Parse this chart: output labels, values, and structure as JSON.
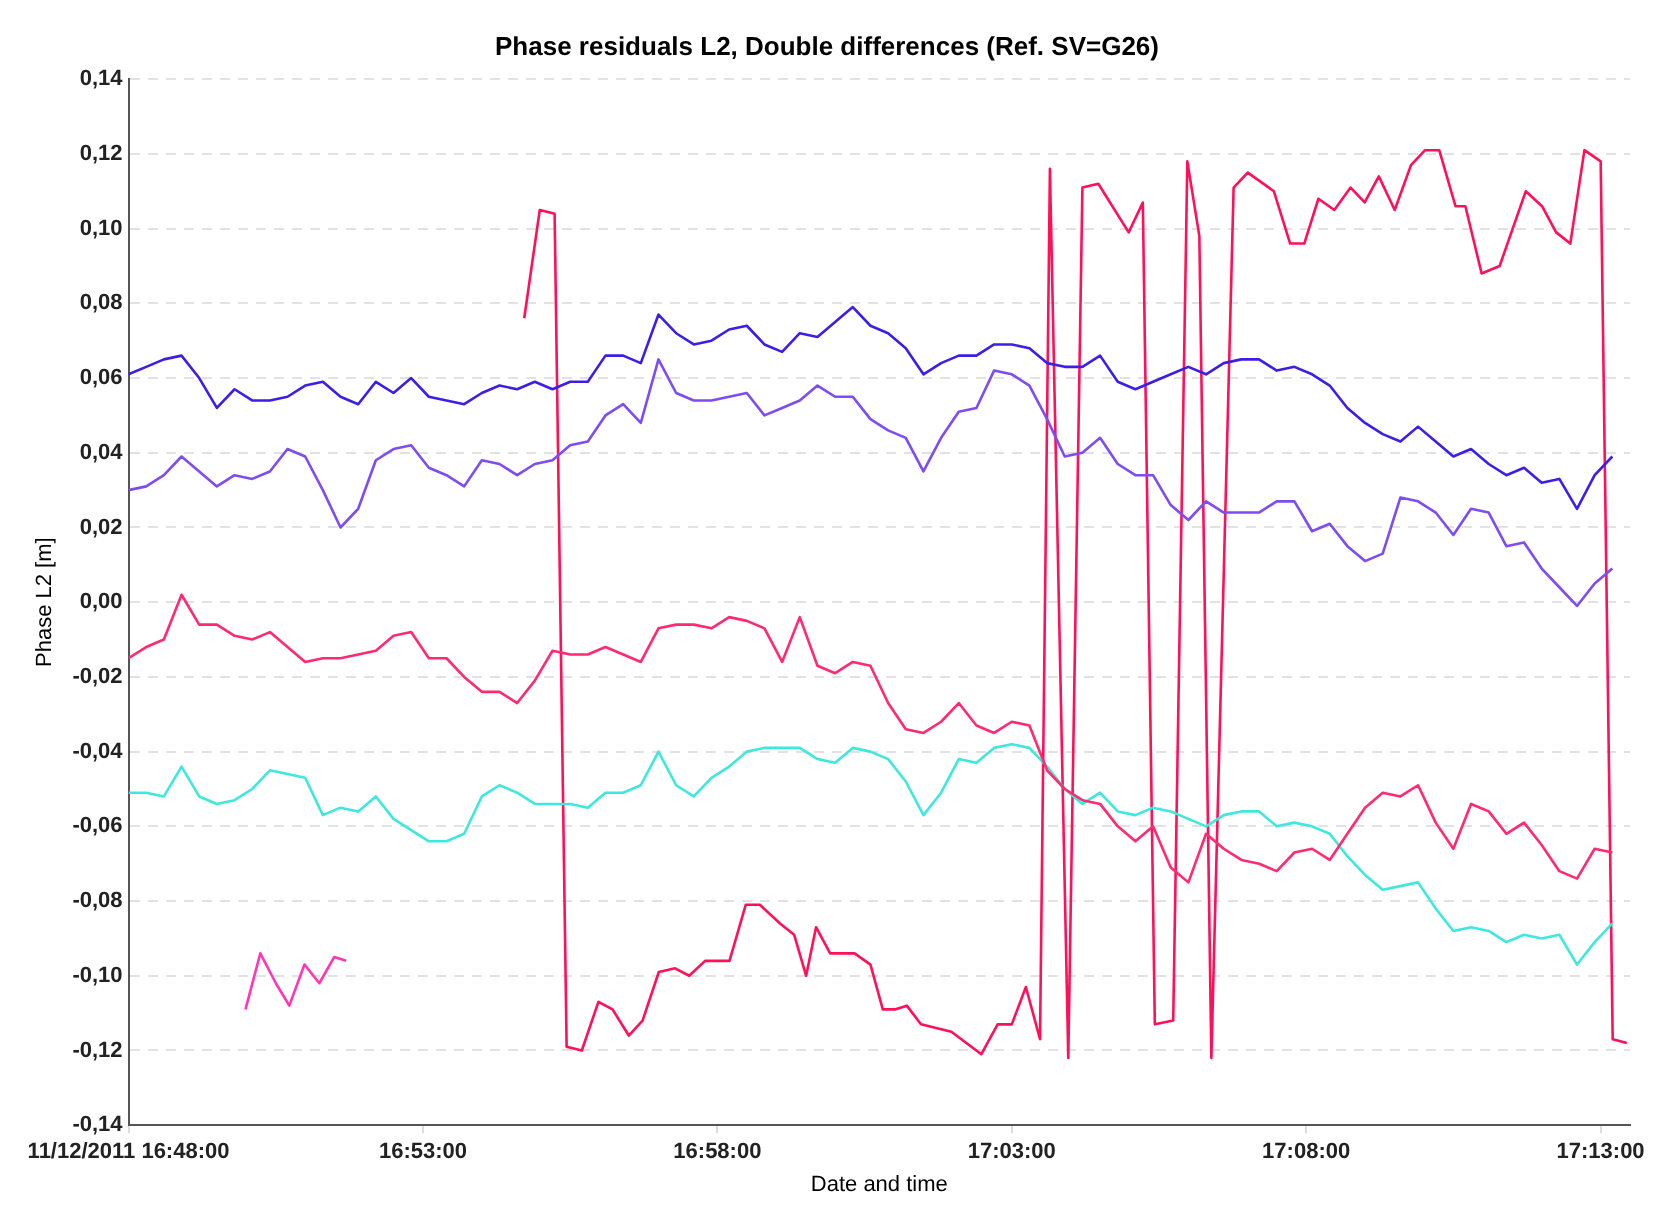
{
  "chart_data": {
    "type": "line",
    "title": "Phase residuals L2, Double differences (Ref. SV=G26)",
    "xlabel": "Date and time",
    "ylabel": "Phase L2 [m]",
    "xlim": [
      16.8,
      17.225
    ],
    "xticks": [
      {
        "value": 16.8,
        "label": "11/12/2011 16:48:00"
      },
      {
        "value": 16.88333,
        "label": "16:53:00"
      },
      {
        "value": 16.96667,
        "label": "16:58:00"
      },
      {
        "value": 17.05,
        "label": "17:03:00"
      },
      {
        "value": 17.13333,
        "label": "17:08:00"
      },
      {
        "value": 17.21667,
        "label": "17:13:00"
      }
    ],
    "ylim": [
      -0.14,
      0.14
    ],
    "yticks": [
      {
        "value": -0.14,
        "label": "-0,14"
      },
      {
        "value": -0.12,
        "label": "-0,12"
      },
      {
        "value": -0.1,
        "label": "-0,10"
      },
      {
        "value": -0.08,
        "label": "-0,08"
      },
      {
        "value": -0.06,
        "label": "-0,06"
      },
      {
        "value": -0.04,
        "label": "-0,04"
      },
      {
        "value": -0.02,
        "label": "-0,02"
      },
      {
        "value": 0,
        "label": "0,00"
      },
      {
        "value": 0.02,
        "label": "0,02"
      },
      {
        "value": 0.04,
        "label": "0,04"
      },
      {
        "value": 0.06,
        "label": "0,06"
      },
      {
        "value": 0.08,
        "label": "0,08"
      },
      {
        "value": 0.1,
        "label": "0,10"
      },
      {
        "value": 0.12,
        "label": "0,12"
      },
      {
        "value": 0.14,
        "label": "0,14"
      }
    ],
    "grid": "y",
    "line_style": "solid",
    "x": [
      16.8,
      16.805,
      16.81,
      16.815,
      16.82,
      16.825,
      16.83,
      16.835,
      16.84,
      16.845,
      16.85,
      16.855,
      16.86,
      16.865,
      16.87,
      16.875,
      16.88,
      16.885,
      16.89,
      16.895,
      16.9,
      16.905,
      16.91,
      16.915,
      16.92,
      16.925,
      16.93,
      16.935,
      16.94,
      16.945,
      16.95,
      16.955,
      16.96,
      16.965,
      16.97,
      16.975,
      16.98,
      16.985,
      16.99,
      16.995,
      17.0,
      17.005,
      17.01,
      17.015,
      17.02,
      17.025,
      17.03,
      17.035,
      17.04,
      17.045,
      17.05,
      17.055,
      17.06,
      17.065,
      17.07,
      17.075,
      17.08,
      17.085,
      17.09,
      17.095,
      17.1,
      17.105,
      17.11,
      17.115,
      17.12,
      17.125,
      17.13,
      17.135,
      17.14,
      17.145,
      17.15,
      17.155,
      17.16,
      17.165,
      17.17,
      17.175,
      17.18,
      17.185,
      17.19,
      17.195,
      17.2,
      17.205,
      17.21,
      17.215,
      17.22
    ],
    "series": [
      {
        "type": "line",
        "color": "#3c1ee8",
        "values": [
          0.061,
          0.063,
          0.065,
          0.066,
          0.06,
          0.052,
          0.057,
          0.054,
          0.054,
          0.055,
          0.058,
          0.059,
          0.055,
          0.053,
          0.059,
          0.056,
          0.06,
          0.055,
          0.054,
          0.053,
          0.056,
          0.058,
          0.057,
          0.059,
          0.057,
          0.059,
          0.059,
          0.066,
          0.066,
          0.064,
          0.077,
          0.072,
          0.069,
          0.07,
          0.073,
          0.074,
          0.069,
          0.067,
          0.072,
          0.071,
          0.075,
          0.079,
          0.074,
          0.072,
          0.068,
          0.061,
          0.064,
          0.066,
          0.066,
          0.069,
          0.069,
          0.068,
          0.064,
          0.063,
          0.063,
          0.066,
          0.059,
          0.057,
          0.059,
          0.061,
          0.063,
          0.061,
          0.064,
          0.065,
          0.065,
          0.062,
          0.063,
          0.061,
          0.058,
          0.052,
          0.048,
          0.045,
          0.043,
          0.047,
          0.043,
          0.039,
          0.041,
          0.037,
          0.034,
          0.036,
          0.032,
          0.033,
          0.025,
          0.034,
          0.039
        ]
      },
      {
        "type": "line",
        "color": "#7d4cf2",
        "values": [
          0.03,
          0.031,
          0.034,
          0.039,
          0.035,
          0.031,
          0.034,
          0.033,
          0.035,
          0.041,
          0.039,
          0.03,
          0.02,
          0.025,
          0.038,
          0.041,
          0.042,
          0.036,
          0.034,
          0.031,
          0.038,
          0.037,
          0.034,
          0.037,
          0.038,
          0.042,
          0.043,
          0.05,
          0.053,
          0.048,
          0.065,
          0.056,
          0.054,
          0.054,
          0.055,
          0.056,
          0.05,
          0.052,
          0.054,
          0.058,
          0.055,
          0.055,
          0.049,
          0.046,
          0.044,
          0.035,
          0.044,
          0.051,
          0.052,
          0.062,
          0.061,
          0.058,
          0.049,
          0.039,
          0.04,
          0.044,
          0.037,
          0.034,
          0.034,
          0.026,
          0.022,
          0.027,
          0.024,
          0.024,
          0.024,
          0.027,
          0.027,
          0.019,
          0.021,
          0.015,
          0.011,
          0.013,
          0.028,
          0.027,
          0.024,
          0.018,
          0.025,
          0.024,
          0.015,
          0.016,
          0.009,
          0.004,
          -0.001,
          0.005,
          0.009
        ]
      },
      {
        "type": "line",
        "color": "#ff2a72",
        "values": [
          -0.015,
          -0.012,
          -0.01,
          0.002,
          -0.006,
          -0.006,
          -0.009,
          -0.01,
          -0.008,
          -0.012,
          -0.016,
          -0.015,
          -0.015,
          -0.014,
          -0.013,
          -0.009,
          -0.008,
          -0.015,
          -0.015,
          -0.02,
          -0.024,
          -0.024,
          -0.027,
          -0.021,
          -0.013,
          -0.014,
          -0.014,
          -0.012,
          -0.014,
          -0.016,
          -0.007,
          -0.006,
          -0.006,
          -0.007,
          -0.004,
          -0.005,
          -0.007,
          -0.016,
          -0.004,
          -0.017,
          -0.019,
          -0.016,
          -0.017,
          -0.027,
          -0.034,
          -0.035,
          -0.032,
          -0.027,
          -0.033,
          -0.035,
          -0.032,
          -0.033,
          -0.045,
          -0.05,
          -0.053,
          -0.054,
          -0.06,
          -0.064,
          -0.06,
          -0.071,
          -0.075,
          -0.062,
          -0.066,
          -0.069,
          -0.07,
          -0.072,
          -0.067,
          -0.066,
          -0.069,
          -0.062,
          -0.055,
          -0.051,
          -0.052,
          -0.049,
          -0.059,
          -0.066,
          -0.054,
          -0.056,
          -0.062,
          -0.059,
          -0.065,
          -0.072,
          -0.074,
          -0.066,
          -0.067
        ]
      },
      {
        "type": "line",
        "color": "#3ee8dc",
        "values": [
          -0.051,
          -0.051,
          -0.052,
          -0.044,
          -0.052,
          -0.054,
          -0.053,
          -0.05,
          -0.045,
          -0.046,
          -0.047,
          -0.057,
          -0.055,
          -0.056,
          -0.052,
          -0.058,
          -0.061,
          -0.064,
          -0.064,
          -0.062,
          -0.052,
          -0.049,
          -0.051,
          -0.054,
          -0.054,
          -0.054,
          -0.055,
          -0.051,
          -0.051,
          -0.049,
          -0.04,
          -0.049,
          -0.052,
          -0.047,
          -0.044,
          -0.04,
          -0.039,
          -0.039,
          -0.039,
          -0.042,
          -0.043,
          -0.039,
          -0.04,
          -0.042,
          -0.048,
          -0.057,
          -0.051,
          -0.042,
          -0.043,
          -0.039,
          -0.038,
          -0.039,
          -0.044,
          -0.05,
          -0.054,
          -0.051,
          -0.056,
          -0.057,
          -0.055,
          -0.056,
          -0.058,
          -0.06,
          -0.057,
          -0.056,
          -0.056,
          -0.06,
          -0.059,
          -0.06,
          -0.062,
          -0.068,
          -0.073,
          -0.077,
          -0.076,
          -0.075,
          -0.082,
          -0.088,
          -0.087,
          -0.088,
          -0.091,
          -0.089,
          -0.09,
          -0.089,
          -0.097,
          -0.091,
          -0.086
        ]
      },
      {
        "type": "line",
        "color": "#ff36b8",
        "x": [
          16.8331,
          16.8373,
          16.8417,
          16.8455,
          16.8498,
          16.854,
          16.8582,
          16.8616
        ],
        "values": [
          -0.109,
          -0.094,
          -0.102,
          -0.108,
          -0.097,
          -0.102,
          -0.095,
          -0.096
        ]
      },
      {
        "type": "line",
        "color": "#ff1058",
        "x": [
          16.912,
          16.9164,
          16.9206,
          16.924,
          16.9283,
          16.933,
          16.937,
          16.9416,
          16.9455,
          16.9501,
          16.9547,
          16.9587,
          16.9632,
          16.9701,
          16.9747,
          16.9787,
          16.9844,
          16.9884,
          16.9918,
          16.9946,
          16.9986,
          17.0055,
          17.01,
          17.0135,
          17.0169,
          17.0203,
          17.0243,
          17.0329,
          17.0414,
          17.046,
          17.05,
          17.054,
          17.058,
          17.0608,
          17.066,
          17.07,
          17.0745,
          17.0831,
          17.0871,
          17.0905,
          17.0957,
          17.0997,
          17.1031,
          17.1065,
          17.1128,
          17.1168,
          17.1242,
          17.1288,
          17.1328,
          17.1368,
          17.1413,
          17.1459,
          17.1499,
          17.1539,
          17.1584,
          17.163,
          17.167,
          17.171,
          17.1756,
          17.1784,
          17.183,
          17.1881,
          17.1955,
          17.2001,
          17.2041,
          17.2081,
          17.2121,
          17.2167,
          17.2201,
          17.2241
        ],
        "values": [
          0.076,
          0.105,
          0.104,
          -0.119,
          -0.12,
          -0.107,
          -0.109,
          -0.116,
          -0.112,
          -0.099,
          -0.098,
          -0.1,
          -0.096,
          -0.096,
          -0.081,
          -0.081,
          -0.086,
          -0.089,
          -0.1,
          -0.087,
          -0.094,
          -0.094,
          -0.097,
          -0.109,
          -0.109,
          -0.108,
          -0.113,
          -0.115,
          -0.121,
          -0.113,
          -0.113,
          -0.103,
          -0.117,
          0.116,
          -0.122,
          0.111,
          0.112,
          0.099,
          0.107,
          -0.113,
          -0.112,
          0.118,
          0.098,
          -0.122,
          0.111,
          0.115,
          0.11,
          0.096,
          0.096,
          0.108,
          0.105,
          0.111,
          0.107,
          0.114,
          0.105,
          0.117,
          0.121,
          0.121,
          0.106,
          0.106,
          0.088,
          0.09,
          0.11,
          0.106,
          0.099,
          0.096,
          0.121,
          0.118,
          -0.117,
          -0.118
        ]
      }
    ]
  }
}
